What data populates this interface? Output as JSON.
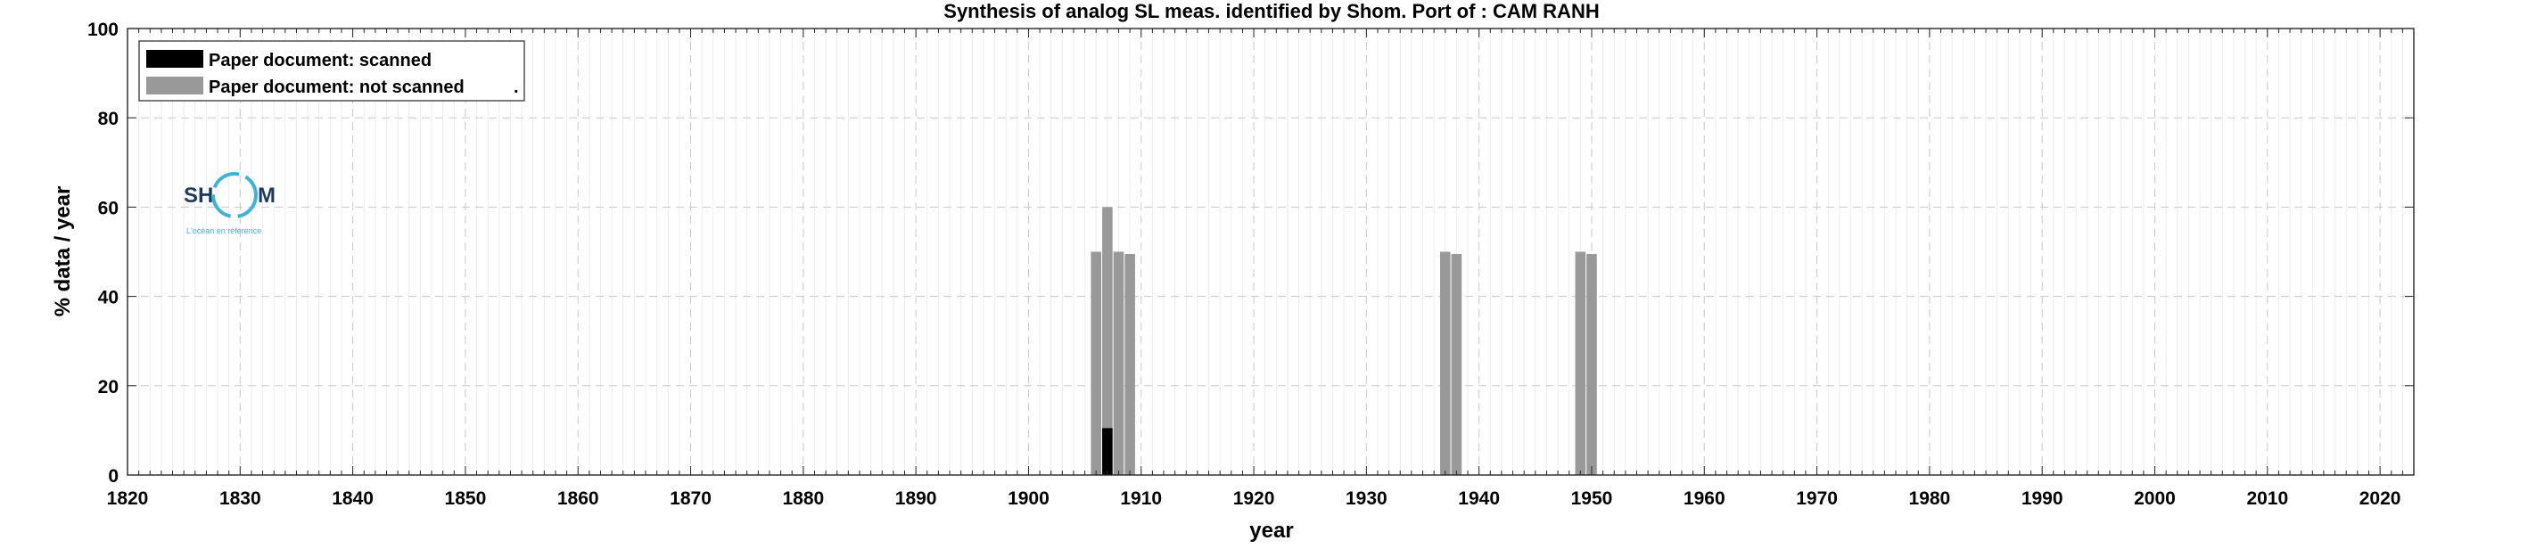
{
  "chart_data": {
    "type": "bar",
    "title": "Synthesis of analog SL meas. identified by Shom. Port of : CAM RANH",
    "xlabel": "year",
    "ylabel": "% data / year",
    "xlim": [
      1820,
      2023
    ],
    "ylim": [
      0,
      100
    ],
    "xticks": [
      1820,
      1830,
      1840,
      1850,
      1860,
      1870,
      1880,
      1890,
      1900,
      1910,
      1920,
      1930,
      1940,
      1950,
      1960,
      1970,
      1980,
      1990,
      2000,
      2010,
      2020
    ],
    "yticks": [
      0,
      20,
      40,
      60,
      80,
      100
    ],
    "grid": true,
    "legend_position": "top-left",
    "series": [
      {
        "name": "Paper document: scanned",
        "color": "#000000",
        "points": [
          {
            "x": 1907,
            "y": 10.5
          }
        ]
      },
      {
        "name": "Paper document: not scanned",
        "color": "#999999",
        "points": [
          {
            "x": 1906,
            "y": 50
          },
          {
            "x": 1907,
            "y": 60
          },
          {
            "x": 1908,
            "y": 50
          },
          {
            "x": 1909,
            "y": 49.5
          },
          {
            "x": 1937,
            "y": 50
          },
          {
            "x": 1938,
            "y": 49.5
          },
          {
            "x": 1949,
            "y": 50
          },
          {
            "x": 1950,
            "y": 49.5
          }
        ]
      }
    ],
    "legend_extra_mark": "."
  },
  "logo": {
    "left_text": "SH",
    "right_text": "M",
    "tagline": "L'océan en référence",
    "ring_color": "#3fb3d6",
    "text_color": "#1f3a5f"
  }
}
